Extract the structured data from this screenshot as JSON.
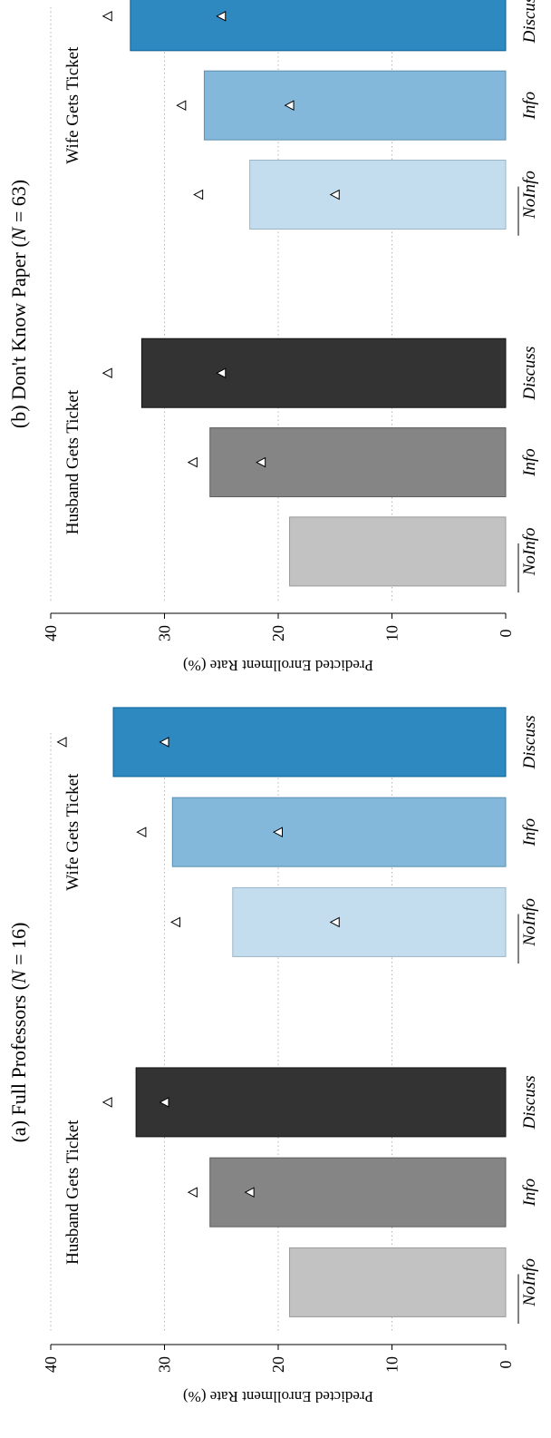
{
  "chart_data": [
    {
      "type": "bar",
      "title_prefix": "(a) Full Professors (",
      "title_n": "N",
      "title_suffix": " = 16)",
      "ylabel": "Predicted Enrollment Rate (%)",
      "ylim": [
        0,
        40
      ],
      "y_ticks": [
        "0",
        "10",
        "20",
        "30",
        "40"
      ],
      "grid": "dotted",
      "groups": [
        {
          "label": "Husband Gets Ticket",
          "categories": [
            "NoInfo",
            "Info",
            "Discuss"
          ],
          "values": [
            19,
            26,
            32.5
          ],
          "colors": [
            "#c2c2c2",
            "#858585",
            "#333333"
          ],
          "markers_inner": [
            null,
            22.5,
            30
          ],
          "markers_outer": [
            null,
            27.5,
            35
          ]
        },
        {
          "label": "Wife Gets Ticket",
          "categories": [
            "NoInfo",
            "Info",
            "Discuss"
          ],
          "values": [
            24,
            29.3,
            34.5
          ],
          "colors": [
            "#c3ddee",
            "#83b8da",
            "#2e89c0"
          ],
          "markers_inner": [
            15,
            20,
            30
          ],
          "markers_outer": [
            29,
            32,
            39
          ]
        }
      ]
    },
    {
      "type": "bar",
      "title_prefix": "(b) Don't Know Paper (",
      "title_n": "N",
      "title_suffix": " = 63)",
      "ylabel": "Predicted Enrollment Rate (%)",
      "ylim": [
        0,
        40
      ],
      "y_ticks": [
        "0",
        "10",
        "20",
        "30",
        "40"
      ],
      "grid": "dotted",
      "groups": [
        {
          "label": "Husband Gets Ticket",
          "categories": [
            "NoInfo",
            "Info",
            "Discuss"
          ],
          "values": [
            19,
            26,
            32
          ],
          "colors": [
            "#c2c2c2",
            "#858585",
            "#333333"
          ],
          "markers_inner": [
            null,
            21.5,
            25
          ],
          "markers_outer": [
            null,
            27.5,
            35
          ]
        },
        {
          "label": "Wife Gets Ticket",
          "categories": [
            "NoInfo",
            "Info",
            "Discuss"
          ],
          "values": [
            22.5,
            26.5,
            33
          ],
          "colors": [
            "#c3ddee",
            "#83b8da",
            "#2e89c0"
          ],
          "markers_inner": [
            15,
            19,
            25
          ],
          "markers_outer": [
            27,
            28.5,
            35
          ]
        }
      ]
    }
  ]
}
